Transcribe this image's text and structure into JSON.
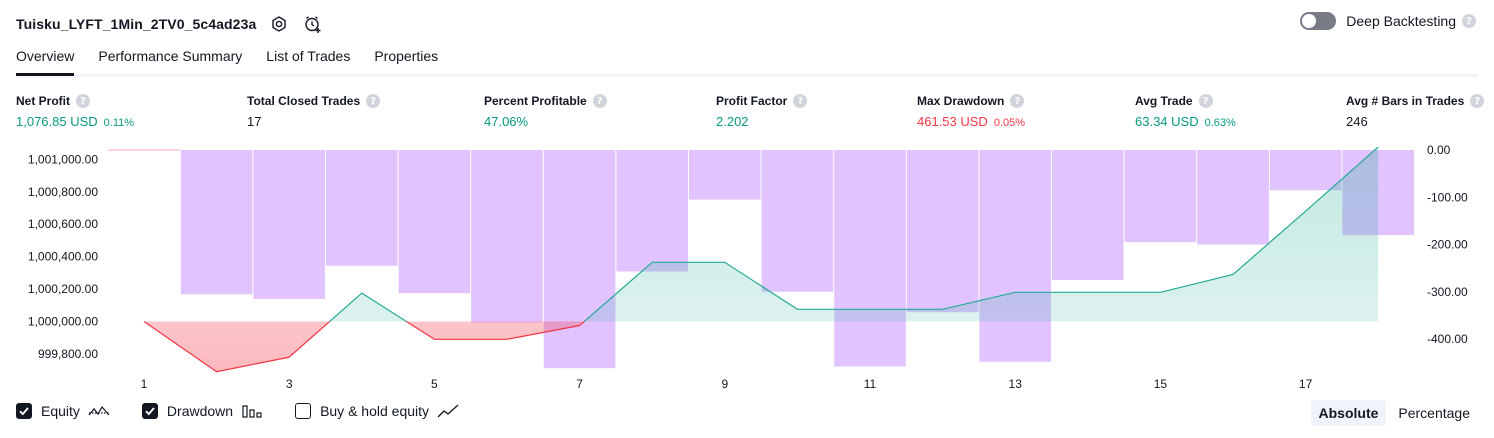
{
  "header": {
    "strategy_name": "Tuisku_LYFT_1Min_2TV0_5c4ad23a",
    "deep_backtesting_label": "Deep Backtesting",
    "deep_backtesting_enabled": false,
    "help_glyph": "?"
  },
  "tabs": [
    {
      "label": "Overview",
      "active": true
    },
    {
      "label": "Performance Summary",
      "active": false
    },
    {
      "label": "List of Trades",
      "active": false
    },
    {
      "label": "Properties",
      "active": false
    }
  ],
  "metrics": [
    {
      "label": "Net Profit",
      "value": "1,076.85 USD",
      "sub": "0.11%",
      "tone": "green"
    },
    {
      "label": "Total Closed Trades",
      "value": "17",
      "sub": "",
      "tone": "dark"
    },
    {
      "label": "Percent Profitable",
      "value": "47.06%",
      "sub": "",
      "tone": "green"
    },
    {
      "label": "Profit Factor",
      "value": "2.202",
      "sub": "",
      "tone": "green"
    },
    {
      "label": "Max Drawdown",
      "value": "461.53 USD",
      "sub": "0.05%",
      "tone": "red"
    },
    {
      "label": "Avg Trade",
      "value": "63.34 USD",
      "sub": "0.63%",
      "tone": "green"
    },
    {
      "label": "Avg # Bars in Trades",
      "value": "246",
      "sub": "",
      "tone": "dark"
    }
  ],
  "chart_data": {
    "type": "line",
    "x": [
      1,
      2,
      3,
      4,
      5,
      6,
      7,
      8,
      9,
      10,
      11,
      12,
      13,
      14,
      15,
      16,
      17,
      18
    ],
    "x_tick_labels": [
      "1",
      "3",
      "5",
      "7",
      "9",
      "11",
      "13",
      "15",
      "17"
    ],
    "y_left_ticks": [
      "1,001,000.00",
      "1,000,800.00",
      "1,000,600.00",
      "1,000,400.00",
      "1,000,200.00",
      "1,000,000.00",
      "999,800.00"
    ],
    "y_right_ticks": [
      "0.00",
      "-100.00",
      "-200.00",
      "-300.00",
      "-400.00"
    ],
    "y_left_range": [
      999750,
      1001070
    ],
    "y_right_range": [
      -440,
      0
    ],
    "baseline": 1000000,
    "series": [
      {
        "name": "Equity",
        "type": "line",
        "values": [
          1000000,
          999690,
          999780,
          1000175,
          999890,
          999890,
          999975,
          1000365,
          1000365,
          1000075,
          1000075,
          1000075,
          1000180,
          1000180,
          1000180,
          1000290,
          1000680,
          1001076.85
        ]
      },
      {
        "name": "Drawdown",
        "type": "bar",
        "values": [
          0,
          -305,
          -315,
          -245,
          -303,
          -365,
          -461.53,
          -257,
          -105,
          -300,
          -458,
          -343,
          -448,
          -275,
          -195,
          -200,
          -85,
          -180
        ]
      }
    ],
    "grid": false,
    "colors": {
      "equity_up": "#22ab94",
      "equity_down": "#f23645",
      "drawdown": "#e1c4ff",
      "drawdown_edge": "#f7525f"
    }
  },
  "legend": [
    {
      "label": "Equity",
      "checked": true,
      "icon": "equity-line-icon"
    },
    {
      "label": "Drawdown",
      "checked": true,
      "icon": "drawdown-bars-icon"
    },
    {
      "label": "Buy & hold equity",
      "checked": false,
      "icon": "buy-hold-line-icon"
    }
  ],
  "view_modes": [
    {
      "label": "Absolute",
      "active": true
    },
    {
      "label": "Percentage",
      "active": false
    }
  ]
}
